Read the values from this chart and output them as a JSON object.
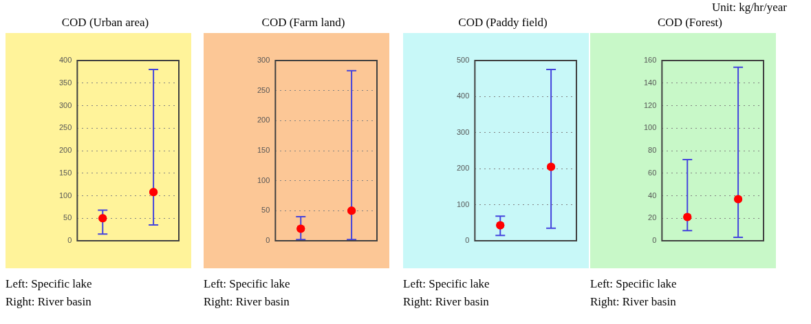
{
  "chart_data": [
    {
      "type": "scatter",
      "title": "COD (Urban area)",
      "categories": [
        null,
        null
      ],
      "series": [
        {
          "color": "#ff0000",
          "values": [
            50,
            108
          ],
          "errors": [
            [
              15,
              68
            ],
            [
              35,
              380
            ]
          ]
        }
      ],
      "ylim": [
        0,
        400
      ],
      "yticks": [
        0,
        50,
        100,
        150,
        200,
        250,
        300,
        350,
        400
      ],
      "grid": "y",
      "legend": false,
      "marker": "circle",
      "tick_labels": "y",
      "annotations": [
        "Left: Specific lake",
        "Right: River basin"
      ]
    },
    {
      "type": "scatter",
      "title": "COD (Farm land)",
      "categories": [
        null,
        null
      ],
      "series": [
        {
          "color": "#ff0000",
          "values": [
            20,
            50
          ],
          "errors": [
            [
              2,
              40
            ],
            [
              2,
              283
            ]
          ]
        }
      ],
      "ylim": [
        0,
        300
      ],
      "yticks": [
        0,
        50,
        100,
        150,
        200,
        250,
        300
      ],
      "grid": "y",
      "legend": false,
      "marker": "circle",
      "tick_labels": "y",
      "annotations": [
        "Left: Specific lake",
        "Right: River basin"
      ]
    },
    {
      "type": "scatter",
      "title": "COD (Paddy field)",
      "categories": [
        null,
        null
      ],
      "series": [
        {
          "color": "#ff0000",
          "values": [
            43,
            205
          ],
          "errors": [
            [
              15,
              68
            ],
            [
              35,
              475
            ]
          ]
        }
      ],
      "ylim": [
        0,
        500
      ],
      "yticks": [
        0,
        100,
        200,
        300,
        400,
        500
      ],
      "grid": "y",
      "legend": false,
      "marker": "circle",
      "tick_labels": "y",
      "annotations": [
        "Left: Specific lake",
        "Right: River basin"
      ]
    },
    {
      "type": "scatter",
      "title": "COD (Forest)",
      "subtitle": "Unit: kg/hr/year",
      "categories": [
        null,
        null
      ],
      "series": [
        {
          "color": "#ff0000",
          "values": [
            21,
            37
          ],
          "errors": [
            [
              9,
              72
            ],
            [
              3,
              154
            ]
          ]
        }
      ],
      "ylim": [
        0,
        160
      ],
      "yticks": [
        0,
        20,
        40,
        60,
        80,
        100,
        120,
        140,
        160
      ],
      "grid": "y",
      "legend": false,
      "marker": "circle",
      "tick_labels": "y",
      "annotations": [
        "Left: Specific lake",
        "Right: River basin"
      ]
    }
  ]
}
